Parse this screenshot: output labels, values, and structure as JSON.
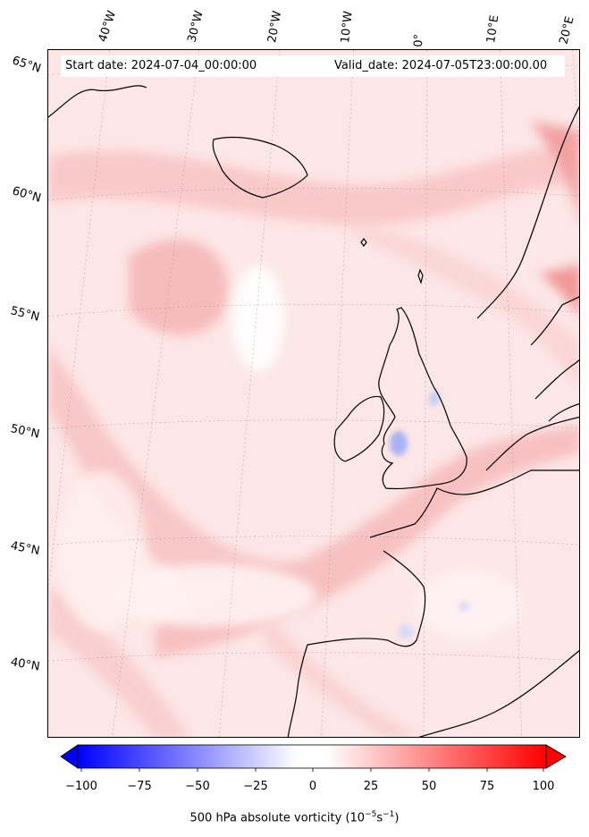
{
  "map": {
    "start_date": "Start date: 2024-07-04_00:00:00",
    "valid_date": "Valid_date: 2024-07-05T23:00:00.00",
    "lon_labels": [
      "40°W",
      "30°W",
      "20°W",
      "10°W",
      "0°",
      "10°E",
      "20°E"
    ],
    "lat_labels": [
      "65°N",
      "60°N",
      "55°N",
      "50°N",
      "45°N",
      "40°N"
    ],
    "colors": {
      "background_field": "#fdecec",
      "positive_max": "#ff0000",
      "negative_max": "#0000ff",
      "neutral": "#ffffff",
      "coastline": "#000000"
    }
  },
  "colorbar": {
    "ticks": [
      "−100",
      "−75",
      "−50",
      "−25",
      "0",
      "25",
      "50",
      "75",
      "100"
    ],
    "label": "500 hPa absolute vorticity (10",
    "label_exp1": "−5",
    "label_mid": "s",
    "label_exp2": "−1",
    "label_end": ")",
    "range": [
      -100,
      100
    ],
    "colormap": "bwr"
  }
}
